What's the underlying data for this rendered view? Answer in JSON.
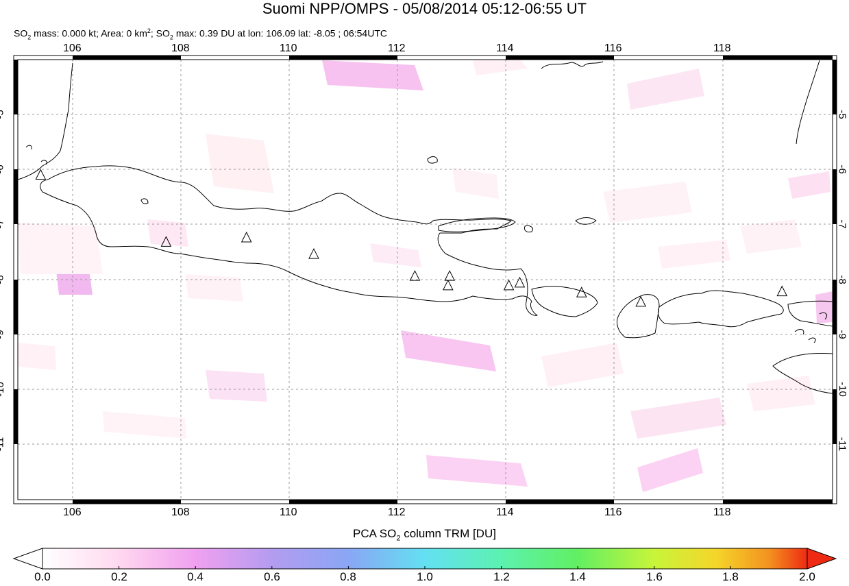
{
  "title": "Suomi NPP/OMPS - 05/08/2014 05:12-06:55 UT",
  "subtitle": {
    "p1": "SO",
    "p2": " mass: 0.000 kt; Area: 0 km",
    "p3": "; SO",
    "p4": " max: 0.39 DU at lon: 106.09 lat: -8.05 ; 06:54UTC",
    "sub2": "2",
    "sup2": "2"
  },
  "map": {
    "lon_range": [
      105.0,
      120.0
    ],
    "lat_range": [
      -12.0,
      -4.0
    ],
    "lon_ticks": [
      "106",
      "108",
      "110",
      "112",
      "114",
      "116",
      "118"
    ],
    "lat_ticks": [
      "-5",
      "-6",
      "-7",
      "-8",
      "-9",
      "-10",
      "-11"
    ],
    "grid": "dashed",
    "volcano_marker": "triangle-icon",
    "volcanoes": [
      {
        "lon": 105.42,
        "lat": -6.1
      },
      {
        "lon": 107.73,
        "lat": -7.32
      },
      {
        "lon": 109.21,
        "lat": -7.24
      },
      {
        "lon": 110.45,
        "lat": -7.54
      },
      {
        "lon": 112.31,
        "lat": -7.94
      },
      {
        "lon": 112.95,
        "lat": -7.94
      },
      {
        "lon": 112.92,
        "lat": -8.11
      },
      {
        "lon": 114.04,
        "lat": -8.11
      },
      {
        "lon": 114.24,
        "lat": -8.06
      },
      {
        "lon": 115.38,
        "lat": -8.24
      },
      {
        "lon": 116.47,
        "lat": -8.41
      },
      {
        "lon": 119.07,
        "lat": -8.22
      }
    ]
  },
  "colorbar": {
    "title_a": "PCA SO",
    "title_sub": "2",
    "title_b": " column TRM [DU]",
    "min": 0.0,
    "max": 2.0,
    "ticks": [
      "0.0",
      "0.2",
      "0.4",
      "0.6",
      "0.8",
      "1.0",
      "1.2",
      "1.4",
      "1.6",
      "1.8",
      "2.0"
    ],
    "colors": [
      "#ffffff",
      "#ffd8f0",
      "#f0a0f0",
      "#b49cf0",
      "#8aa6f5",
      "#63d8f2",
      "#5cf2b0",
      "#62ef62",
      "#aef53e",
      "#f5f527",
      "#f5b82a",
      "#f06a1e",
      "#ee2b12"
    ]
  }
}
